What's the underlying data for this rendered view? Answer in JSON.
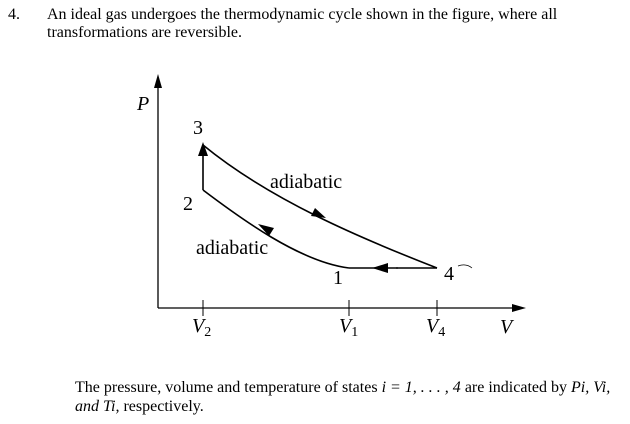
{
  "question": {
    "number": "4.",
    "text": "An ideal gas undergoes the thermodynamic cycle shown in the figure, where all transformations are reversible."
  },
  "diagram": {
    "y_axis_label": "P",
    "x_axis_label": "V",
    "state_labels": [
      "1",
      "2",
      "3",
      "4"
    ],
    "curve_labels": {
      "upper": "adiabatic",
      "lower": "adiabatic"
    },
    "x_ticks": [
      {
        "base": "V",
        "sub": "2"
      },
      {
        "base": "V",
        "sub": "1"
      },
      {
        "base": "V",
        "sub": "4"
      }
    ]
  },
  "caption": {
    "prefix": "The pressure, volume and temperature of states",
    "range": "i = 1, . . . , 4",
    "middle": "are indicated by",
    "symbols": "Pi, Vi, and Ti,",
    "suffix": "respectively."
  }
}
